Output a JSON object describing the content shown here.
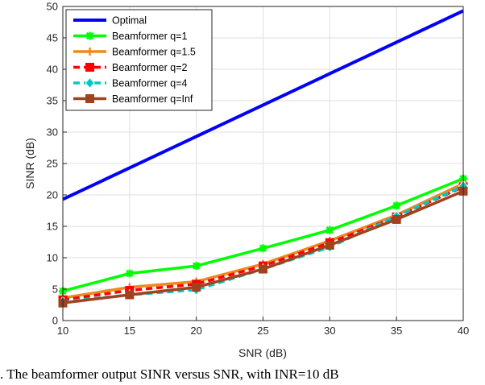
{
  "caption": ".   The beamformer output SINR versus SNR, with INR=10 dB",
  "colors": {
    "Optimal": "#0000ff",
    "Beamformer q=1": "#00ff00",
    "Beamformer q=1.5": "#ee8a1c",
    "Beamformer q=2": "#ff0000",
    "Beamformer q=4": "#00c8c8",
    "Beamformer q=Inf": "#a0421e"
  },
  "chart_data": {
    "type": "line",
    "title": "",
    "xlabel": "SNR (dB)",
    "ylabel": "SINR (dB)",
    "xlim": [
      10,
      40
    ],
    "ylim": [
      0,
      50
    ],
    "xticks": [
      10,
      15,
      20,
      25,
      30,
      35,
      40
    ],
    "yticks": [
      0,
      5,
      10,
      15,
      20,
      25,
      30,
      35,
      40,
      45,
      50
    ],
    "grid": true,
    "legend_position": "top-left",
    "x": [
      10,
      15,
      20,
      25,
      30,
      35,
      40
    ],
    "series": [
      {
        "name": "Optimal",
        "values": [
          19.3,
          24.3,
          29.3,
          34.3,
          39.3,
          44.3,
          49.3
        ],
        "marker": "none",
        "style": "solid"
      },
      {
        "name": "Beamformer q=1",
        "values": [
          4.7,
          7.5,
          8.7,
          11.5,
          14.4,
          18.3,
          22.6
        ],
        "marker": "asterisk",
        "style": "solid"
      },
      {
        "name": "Beamformer q=1.5",
        "values": [
          3.6,
          5.3,
          6.2,
          9.0,
          12.7,
          16.8,
          21.8
        ],
        "marker": "plus",
        "style": "solid"
      },
      {
        "name": "Beamformer q=2",
        "values": [
          3.3,
          4.8,
          5.8,
          8.7,
          12.4,
          16.5,
          21.3
        ],
        "marker": "square",
        "style": "dashed"
      },
      {
        "name": "Beamformer q=4",
        "values": [
          3.0,
          4.1,
          4.9,
          8.2,
          11.7,
          16.6,
          21.4
        ],
        "marker": "diamond",
        "style": "dashed"
      },
      {
        "name": "Beamformer q=Inf",
        "values": [
          2.8,
          4.1,
          5.3,
          8.2,
          12.0,
          16.1,
          20.6
        ],
        "marker": "square",
        "style": "solid"
      }
    ]
  }
}
